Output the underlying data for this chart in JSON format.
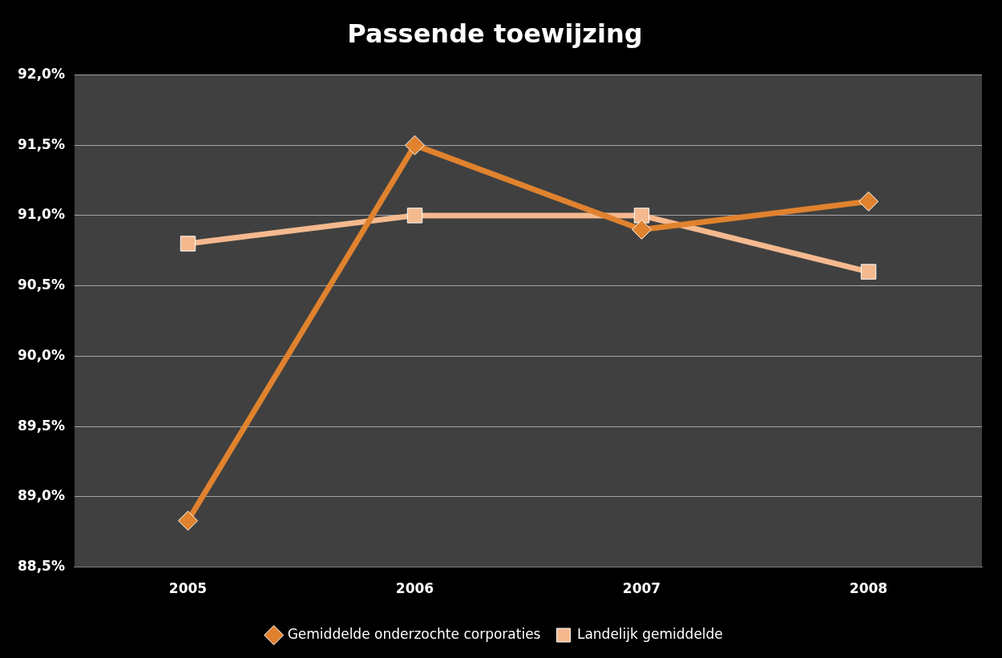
{
  "chart_data": {
    "type": "line",
    "title": "Passende toewijzing",
    "categories": [
      "2005",
      "2006",
      "2007",
      "2008"
    ],
    "series": [
      {
        "name": "Gemiddelde onderzochte corporaties",
        "color": "#e0822e",
        "values": [
          88.83,
          91.5,
          90.9,
          91.1
        ],
        "marker": "diamond"
      },
      {
        "name": "Landelijk gemiddelde",
        "color": "#f4b98e",
        "values": [
          90.8,
          91.0,
          91.0,
          90.6
        ],
        "marker": "square"
      }
    ],
    "ylim": [
      88.5,
      92
    ],
    "yticks": [
      {
        "value": 88.5,
        "label": "88,5%"
      },
      {
        "value": 89,
        "label": "89,0%"
      },
      {
        "value": 89.5,
        "label": "89,5%"
      },
      {
        "value": 90,
        "label": "90,0%"
      },
      {
        "value": 90.5,
        "label": "90,5%"
      },
      {
        "value": 91,
        "label": "91,0%"
      },
      {
        "value": 91.5,
        "label": "91,5%"
      },
      {
        "value": 92,
        "label": "92,0%"
      }
    ],
    "grid": "y",
    "legend": "bottom",
    "line_style": "solid"
  }
}
